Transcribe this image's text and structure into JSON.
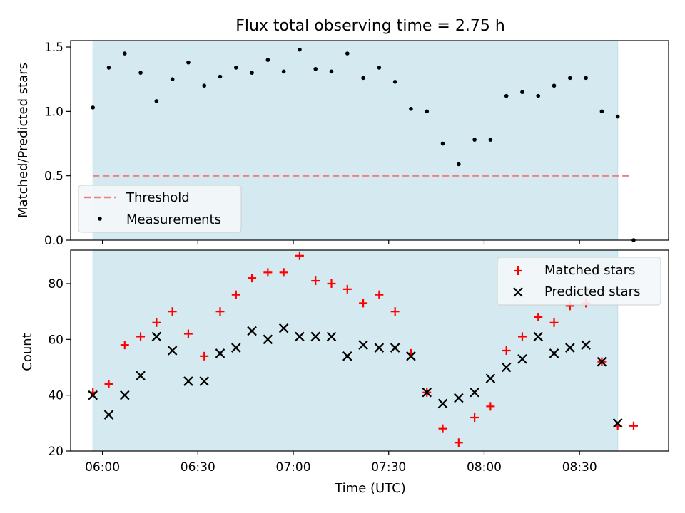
{
  "title": "Flux total observing time = 2.75 h",
  "colors": {
    "observing_band": "#d4eaf0",
    "threshold": "#f08080",
    "measurement": "#000000",
    "matched": "#ff0000",
    "predicted": "#000000",
    "legend_bg": "#f5f8fb"
  },
  "chart_data": [
    {
      "type": "scatter",
      "panel": "top",
      "title": "Flux total observing time = 2.75 h",
      "xlabel": "",
      "ylabel": "Matched/Predicted stars",
      "xlim": [
        "05:50",
        "08:58"
      ],
      "ylim": [
        0,
        1.55
      ],
      "yticks": [
        0.0,
        0.5,
        1.0,
        1.5
      ],
      "ytick_labels": [
        "0.0",
        "0.5",
        "1.0",
        "1.5"
      ],
      "xticks": [
        "06:00",
        "06:30",
        "07:00",
        "07:30",
        "08:00",
        "08:30"
      ],
      "observing_span": [
        "05:57",
        "08:42"
      ],
      "legend": {
        "placement": "lower-left",
        "entries": [
          "Threshold",
          "Measurements"
        ]
      },
      "series": [
        {
          "name": "Threshold",
          "kind": "line",
          "x": [
            "05:57",
            "08:46"
          ],
          "y": [
            0.5,
            0.5
          ]
        },
        {
          "name": "Measurements",
          "kind": "points",
          "x": [
            "05:57",
            "06:02",
            "06:07",
            "06:12",
            "06:17",
            "06:22",
            "06:27",
            "06:32",
            "06:37",
            "06:42",
            "06:47",
            "06:52",
            "06:57",
            "07:02",
            "07:07",
            "07:12",
            "07:17",
            "07:22",
            "07:27",
            "07:32",
            "07:37",
            "07:42",
            "07:47",
            "07:52",
            "07:57",
            "08:02",
            "08:07",
            "08:12",
            "08:17",
            "08:22",
            "08:27",
            "08:32",
            "08:37",
            "08:42",
            "08:47"
          ],
          "y": [
            1.03,
            1.34,
            1.45,
            1.3,
            1.08,
            1.25,
            1.38,
            1.2,
            1.27,
            1.34,
            1.3,
            1.4,
            1.31,
            1.48,
            1.33,
            1.31,
            1.45,
            1.26,
            1.34,
            1.23,
            1.02,
            1.0,
            0.75,
            0.59,
            0.78,
            0.78,
            1.12,
            1.15,
            1.12,
            1.2,
            1.26,
            1.26,
            1.0,
            0.96,
            0.0
          ]
        }
      ]
    },
    {
      "type": "scatter",
      "panel": "bottom",
      "xlabel": "Time (UTC)",
      "ylabel": "Count",
      "xlim": [
        "05:50",
        "08:58"
      ],
      "ylim": [
        20,
        92
      ],
      "yticks": [
        20,
        40,
        60,
        80
      ],
      "ytick_labels": [
        "20",
        "40",
        "60",
        "80"
      ],
      "xticks": [
        "06:00",
        "06:30",
        "07:00",
        "07:30",
        "08:00",
        "08:30"
      ],
      "observing_span": [
        "05:57",
        "08:42"
      ],
      "legend": {
        "placement": "top-right",
        "entries": [
          "Matched stars",
          "Predicted stars"
        ]
      },
      "series": [
        {
          "name": "Matched stars",
          "marker": "plus",
          "x": [
            "05:57",
            "06:02",
            "06:07",
            "06:12",
            "06:17",
            "06:22",
            "06:27",
            "06:32",
            "06:37",
            "06:42",
            "06:47",
            "06:52",
            "06:57",
            "07:02",
            "07:07",
            "07:12",
            "07:17",
            "07:22",
            "07:27",
            "07:32",
            "07:37",
            "07:42",
            "07:47",
            "07:52",
            "07:57",
            "08:02",
            "08:07",
            "08:12",
            "08:17",
            "08:22",
            "08:27",
            "08:32",
            "08:37",
            "08:42",
            "08:47"
          ],
          "y": [
            41,
            44,
            58,
            61,
            66,
            70,
            62,
            54,
            70,
            76,
            82,
            84,
            84,
            90,
            81,
            80,
            78,
            73,
            76,
            70,
            55,
            41,
            28,
            23,
            32,
            36,
            56,
            61,
            68,
            66,
            72,
            73,
            52,
            29,
            29
          ]
        },
        {
          "name": "Predicted stars",
          "marker": "x",
          "x": [
            "05:57",
            "06:02",
            "06:07",
            "06:12",
            "06:17",
            "06:22",
            "06:27",
            "06:32",
            "06:37",
            "06:42",
            "06:47",
            "06:52",
            "06:57",
            "07:02",
            "07:07",
            "07:12",
            "07:17",
            "07:22",
            "07:27",
            "07:32",
            "07:37",
            "07:42",
            "07:47",
            "07:52",
            "07:57",
            "08:02",
            "08:07",
            "08:12",
            "08:17",
            "08:22",
            "08:27",
            "08:32",
            "08:37",
            "08:42"
          ],
          "y": [
            40,
            33,
            40,
            47,
            61,
            56,
            45,
            45,
            55,
            57,
            63,
            60,
            64,
            61,
            61,
            61,
            54,
            58,
            57,
            57,
            54,
            41,
            37,
            39,
            41,
            46,
            50,
            53,
            61,
            55,
            57,
            58,
            52,
            30
          ]
        }
      ]
    }
  ]
}
